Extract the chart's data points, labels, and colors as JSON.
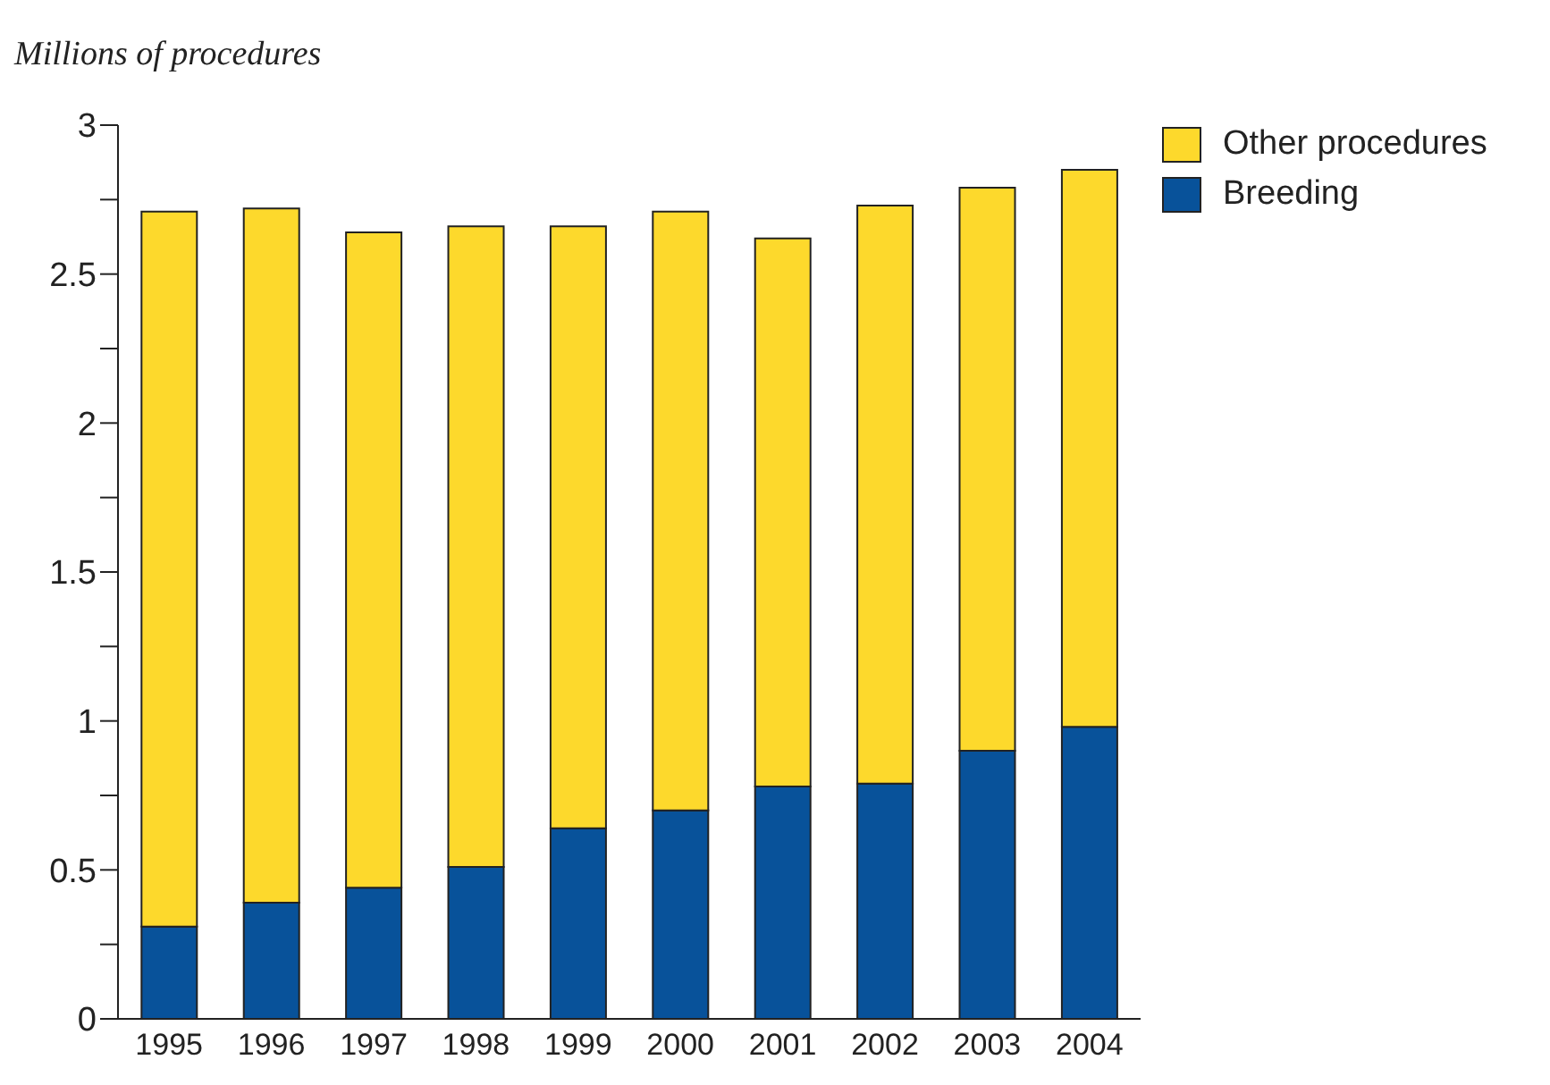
{
  "chart_data": {
    "type": "bar",
    "stacked": true,
    "ylabel": "Millions of procedures",
    "categories": [
      "1995",
      "1996",
      "1997",
      "1998",
      "1999",
      "2000",
      "2001",
      "2002",
      "2003",
      "2004"
    ],
    "series": [
      {
        "name": "Breeding",
        "color": "#08529a",
        "values": [
          0.31,
          0.39,
          0.44,
          0.51,
          0.64,
          0.7,
          0.78,
          0.79,
          0.9,
          0.98
        ]
      },
      {
        "name": "Other procedures",
        "color": "#fdd92c",
        "values": [
          2.4,
          2.33,
          2.2,
          2.15,
          2.02,
          2.01,
          1.84,
          1.94,
          1.89,
          1.87
        ]
      }
    ],
    "ylim": [
      0,
      3
    ],
    "yticks": [
      0,
      {
        "value": 0.25,
        "label": null
      },
      0.5,
      {
        "value": 0.75,
        "label": null
      },
      1,
      {
        "value": 1.25,
        "label": null
      },
      1.5,
      {
        "value": 1.75,
        "label": null
      },
      2,
      {
        "value": 2.25,
        "label": null
      },
      2.5,
      {
        "value": 2.75,
        "label": null
      },
      3
    ],
    "grid": false,
    "legend": "top right"
  }
}
